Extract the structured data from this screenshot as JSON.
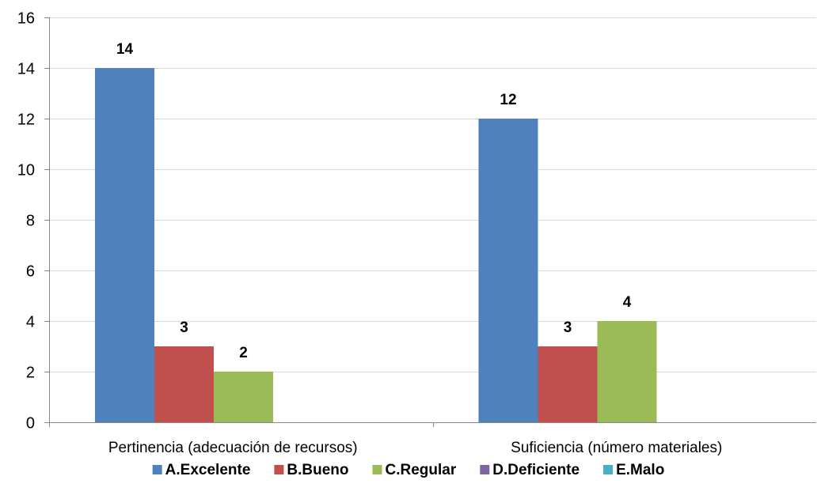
{
  "chart_data": {
    "type": "bar",
    "categories": [
      "Pertinencia (adecuación de recursos)",
      "Suficiencia (número materiales)"
    ],
    "series": [
      {
        "name": "A.Excelente",
        "color": "#4F81BD",
        "values": [
          14,
          12
        ]
      },
      {
        "name": "B.Bueno",
        "color": "#C0504D",
        "values": [
          3,
          3
        ]
      },
      {
        "name": "C.Regular",
        "color": "#9BBB59",
        "values": [
          2,
          4
        ]
      },
      {
        "name": "D.Deficiente",
        "color": "#8064A2",
        "values": [
          0,
          0
        ]
      },
      {
        "name": "E.Malo",
        "color": "#4BACC6",
        "values": [
          0,
          0
        ]
      }
    ],
    "ylim": [
      0,
      16
    ],
    "yticks": [
      0,
      2,
      4,
      6,
      8,
      10,
      12,
      14,
      16
    ],
    "grid": true,
    "legend": "bottom",
    "data_labels": [
      {
        "series": 0,
        "category": 0,
        "text": "14"
      },
      {
        "series": 1,
        "category": 0,
        "text": "3"
      },
      {
        "series": 2,
        "category": 0,
        "text": "2"
      },
      {
        "series": 0,
        "category": 1,
        "text": "12"
      },
      {
        "series": 1,
        "category": 1,
        "text": "3"
      },
      {
        "series": 2,
        "category": 1,
        "text": "4"
      }
    ]
  }
}
